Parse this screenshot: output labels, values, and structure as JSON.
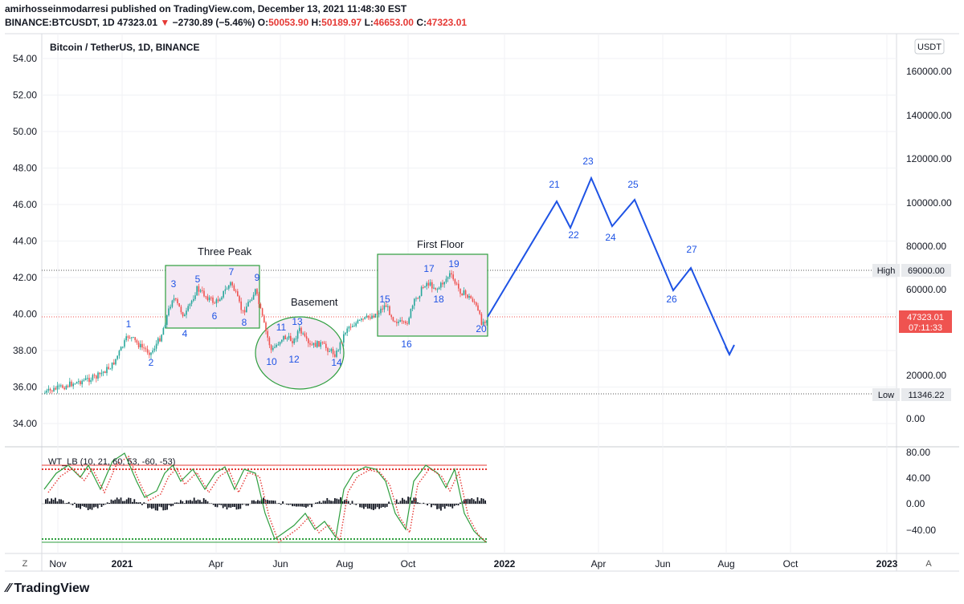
{
  "header": {
    "line1": "amirhosseinmodarresi published on TradingView.com, December 13, 2021 11:48:30 EST",
    "symbol": "BINANCE:BTCUSDT, 1D",
    "last": "47323.01",
    "change_arrow": "▼",
    "change": "−2730.89 (−5.46%)",
    "o_label": "O:",
    "o_val": "50053.90",
    "h_label": "H:",
    "h_val": "50189.97",
    "l_label": "L:",
    "l_val": "46653.00",
    "c_label": "C:",
    "c_val": "47323.01"
  },
  "chart_title": "Bitcoin / TetherUS, 1D, BINANCE",
  "currency_badge": "USDT",
  "bottom_left_btn": "Z",
  "bottom_right_btn": "A",
  "brand": "TradingView",
  "colors": {
    "up": "#26a69a",
    "down": "#ef5350",
    "projection": "#1e53e5",
    "box": "#2e9e3e",
    "box_fill": "#f4e9f4",
    "price_badge": "#ef5350",
    "grid": "#eef0f3"
  },
  "chart_data": {
    "type": "line",
    "price_panel": {
      "left_axis_ticks": [
        "54.00",
        "52.00",
        "50.00",
        "48.00",
        "46.00",
        "44.00",
        "42.00",
        "40.00",
        "38.00",
        "36.00",
        "34.00"
      ],
      "right_axis_ticks": [
        "160000.00",
        "140000.00",
        "120000.00",
        "100000.00",
        "80000.00",
        "60000.00",
        "20000.00",
        "0.00"
      ],
      "high_label": "High",
      "high_value": "69000.00",
      "low_label": "Low",
      "low_value": "11346.22",
      "last_price": "47323.01",
      "countdown": "07:11:33",
      "x_ticks": [
        "Nov",
        "2021",
        "Apr",
        "Jun",
        "Aug",
        "Oct",
        "2022",
        "Apr",
        "Jun",
        "Aug",
        "Oct",
        "2023"
      ],
      "annotations": [
        "Three Peak",
        "Basement",
        "First Floor"
      ],
      "wave_points": [
        {
          "label": "1",
          "pos": "top"
        },
        {
          "label": "2",
          "pos": "bottom"
        },
        {
          "label": "3",
          "pos": "top"
        },
        {
          "label": "4",
          "pos": "bottom"
        },
        {
          "label": "5",
          "pos": "top"
        },
        {
          "label": "6",
          "pos": "bottom"
        },
        {
          "label": "7",
          "pos": "top"
        },
        {
          "label": "8",
          "pos": "bottom"
        },
        {
          "label": "9",
          "pos": "top"
        },
        {
          "label": "10",
          "pos": "bottom"
        },
        {
          "label": "11",
          "pos": "top"
        },
        {
          "label": "12",
          "pos": "bottom"
        },
        {
          "label": "13",
          "pos": "top"
        },
        {
          "label": "14",
          "pos": "bottom"
        },
        {
          "label": "15",
          "pos": "top"
        },
        {
          "label": "16",
          "pos": "bottom"
        },
        {
          "label": "17",
          "pos": "top"
        },
        {
          "label": "18",
          "pos": "bottom"
        },
        {
          "label": "19",
          "pos": "top"
        },
        {
          "label": "20",
          "pos": "bottom"
        },
        {
          "label": "21",
          "pos": "top"
        },
        {
          "label": "22",
          "pos": "bottom"
        },
        {
          "label": "23",
          "pos": "top"
        },
        {
          "label": "24",
          "pos": "bottom"
        },
        {
          "label": "25",
          "pos": "top"
        },
        {
          "label": "26",
          "pos": "bottom"
        },
        {
          "label": "27",
          "pos": "top"
        }
      ]
    },
    "indicator_panel": {
      "name": "WT_LB (10, 21, 60, 53, -60, -53)",
      "ticks": [
        "80.00",
        "40.00",
        "0.00",
        "−40.00"
      ]
    }
  }
}
